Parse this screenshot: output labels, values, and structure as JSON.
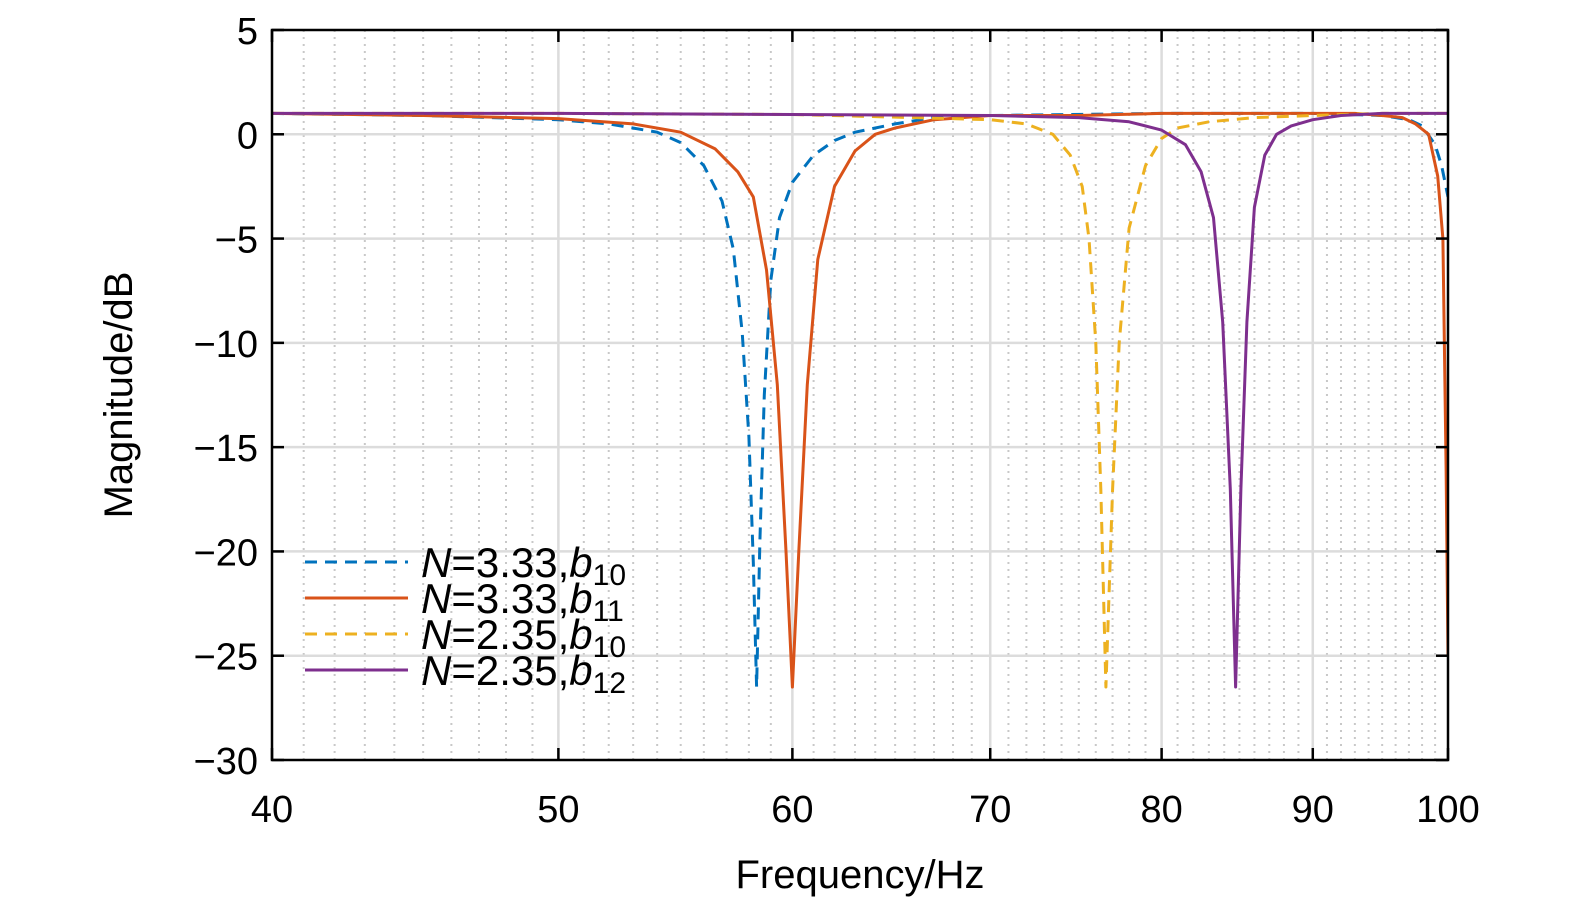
{
  "chart_data": {
    "type": "line",
    "title": "",
    "xlabel": "Frequency/Hz",
    "ylabel": "Magnitude/dB",
    "xscale": "log",
    "xlim": [
      40,
      100
    ],
    "ylim": [
      -30,
      5
    ],
    "grid": true,
    "legend_position": "lower-left",
    "x_ticks": [
      40,
      50,
      60,
      70,
      80,
      90,
      100
    ],
    "x_tick_labels": [
      "40",
      "50",
      "60",
      "70",
      "80",
      "90",
      "100"
    ],
    "y_ticks": [
      5,
      0,
      -5,
      -10,
      -15,
      -20,
      -25,
      -30
    ],
    "y_tick_labels": [
      "5",
      "0",
      "−5",
      "−10",
      "−15",
      "−20",
      "−25",
      "−30"
    ],
    "series": [
      {
        "name": "N=3.33,b10",
        "legend": {
          "italic": "N",
          "text": "=3.33,",
          "var": "b",
          "sub": "10"
        },
        "color": "#0072BD",
        "dash": "dashed",
        "x": [
          40,
          45,
          50,
          52,
          54,
          55,
          56,
          56.8,
          57.3,
          57.7,
          58,
          58.2,
          58.35,
          58.5,
          58.7,
          59,
          59.4,
          60,
          61,
          62,
          63,
          65,
          67,
          70,
          80,
          90,
          95,
          97,
          98,
          99,
          99.5,
          100
        ],
        "y": [
          1.0,
          0.9,
          0.7,
          0.5,
          0.1,
          -0.4,
          -1.5,
          -3.2,
          -5.5,
          -9.5,
          -14.5,
          -20.5,
          -26.5,
          -19.5,
          -12.5,
          -7.0,
          -4.0,
          -2.3,
          -1.0,
          -0.3,
          0.1,
          0.5,
          0.8,
          0.9,
          1.0,
          1.0,
          0.9,
          0.7,
          0.4,
          -0.5,
          -1.5,
          -3.0
        ]
      },
      {
        "name": "N=3.33,b11",
        "legend": {
          "italic": "N",
          "text": "=3.33,",
          "var": "b",
          "sub": "11"
        },
        "color": "#D95319",
        "dash": "solid",
        "x": [
          40,
          45,
          50,
          53,
          55,
          56.5,
          57.5,
          58.2,
          58.8,
          59.3,
          59.7,
          60,
          60.3,
          60.7,
          61.2,
          62,
          63,
          64,
          65,
          67,
          70,
          75,
          80,
          85,
          90,
          93,
          95,
          96.5,
          97.5,
          98.5,
          99.2,
          99.6,
          99.85,
          100
        ],
        "y": [
          1.0,
          0.9,
          0.75,
          0.5,
          0.1,
          -0.7,
          -1.8,
          -3.0,
          -6.5,
          -12.0,
          -20.0,
          -26.5,
          -20.0,
          -12.0,
          -6.0,
          -2.5,
          -0.8,
          0.0,
          0.3,
          0.7,
          0.9,
          0.9,
          1.0,
          1.0,
          1.0,
          1.0,
          0.9,
          0.8,
          0.5,
          0.0,
          -2.0,
          -5.0,
          -16.0,
          -25.0
        ]
      },
      {
        "name": "N=2.35,b10",
        "legend": {
          "italic": "N",
          "text": "=2.35,",
          "var": "b",
          "sub": "10"
        },
        "color": "#EDB120",
        "dash": "dashed",
        "x": [
          40,
          50,
          60,
          66,
          70,
          72,
          73.5,
          74.5,
          75.2,
          75.6,
          76,
          76.3,
          76.6,
          77,
          77.4,
          78,
          79,
          80,
          81,
          83,
          86,
          90,
          95,
          100
        ],
        "y": [
          1.0,
          1.0,
          0.95,
          0.8,
          0.7,
          0.5,
          0.0,
          -1.0,
          -2.5,
          -5.0,
          -10.0,
          -17.0,
          -26.5,
          -17.0,
          -10.0,
          -4.5,
          -1.5,
          -0.2,
          0.3,
          0.6,
          0.8,
          0.9,
          1.0,
          1.0
        ]
      },
      {
        "name": "N=2.35,b12",
        "legend": {
          "italic": "N",
          "text": "=2.35,",
          "var": "b",
          "sub": "12"
        },
        "color": "#7E2F8E",
        "dash": "solid",
        "x": [
          40,
          50,
          60,
          70,
          75,
          78,
          80,
          81.5,
          82.5,
          83.3,
          83.9,
          84.4,
          84.75,
          85.1,
          85.5,
          86,
          86.7,
          87.5,
          88.5,
          90,
          92,
          95,
          100
        ],
        "y": [
          1.0,
          1.0,
          0.95,
          0.9,
          0.8,
          0.6,
          0.2,
          -0.5,
          -1.8,
          -4.0,
          -9.0,
          -17.0,
          -26.5,
          -17.0,
          -9.0,
          -3.5,
          -1.0,
          0.0,
          0.4,
          0.7,
          0.9,
          1.0,
          1.0
        ]
      }
    ]
  }
}
